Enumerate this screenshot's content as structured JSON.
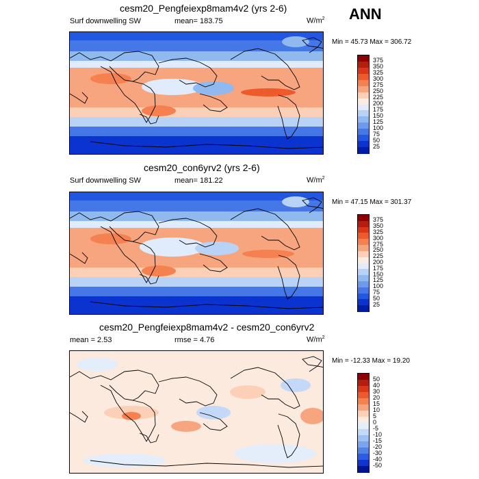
{
  "season": "ANN",
  "panels": [
    {
      "title": "cesm20_Pengfeiexp8mam4v2 (yrs 2-6)",
      "variable": "Surf downwelling SW",
      "mean_text": "mean= 183.75",
      "units": "W/m",
      "units_exp": "2",
      "minmax": "Min =  45.73 Max = 306.72",
      "colorbar_labels": [
        "375",
        "350",
        "325",
        "300",
        "275",
        "250",
        "225",
        "200",
        "175",
        "150",
        "125",
        "100",
        "75",
        "50",
        "25"
      ]
    },
    {
      "title": "cesm20_con6yrv2 (yrs 2-6)",
      "variable": "Surf downwelling SW",
      "mean_text": "mean= 181.22",
      "units": "W/m",
      "units_exp": "2",
      "minmax": "Min =  47.15 Max = 301.37",
      "colorbar_labels": [
        "375",
        "350",
        "325",
        "300",
        "275",
        "250",
        "225",
        "200",
        "175",
        "150",
        "125",
        "100",
        "75",
        "50",
        "25"
      ]
    },
    {
      "title": "cesm20_Pengfeiexp8mam4v2 - cesm20_con6yrv2",
      "mean_text": "mean =   2.53",
      "rmse_text": "rmse =   4.76",
      "units": "W/m",
      "units_exp": "2",
      "minmax": "Min = -12.33 Max =  19.20",
      "colorbar_labels": [
        "50",
        "40",
        "30",
        "20",
        "15",
        "10",
        "5",
        "0",
        "-5",
        "-10",
        "-15",
        "-20",
        "-30",
        "-40",
        "-50"
      ]
    }
  ],
  "colors": {
    "abs_scale": [
      "#8b0000",
      "#b41e0e",
      "#d9361a",
      "#ee5a2c",
      "#f4814f",
      "#f7a57e",
      "#fbd0b6",
      "#fbece2",
      "#e0ecfb",
      "#b9d3f6",
      "#90b9f0",
      "#6d9bea",
      "#4677e6",
      "#2257e2",
      "#0b33cf",
      "#001ca6"
    ],
    "diff_scale": [
      "#8b0000",
      "#b41e0e",
      "#d9361a",
      "#ee5a2c",
      "#f4814f",
      "#f7a57e",
      "#fbd0b6",
      "#fdeadf",
      "#e4eefb",
      "#c4d9f7",
      "#9fc1f2",
      "#7aa4ec",
      "#5281e7",
      "#2a5de2",
      "#0e36cf",
      "#00148f"
    ]
  }
}
